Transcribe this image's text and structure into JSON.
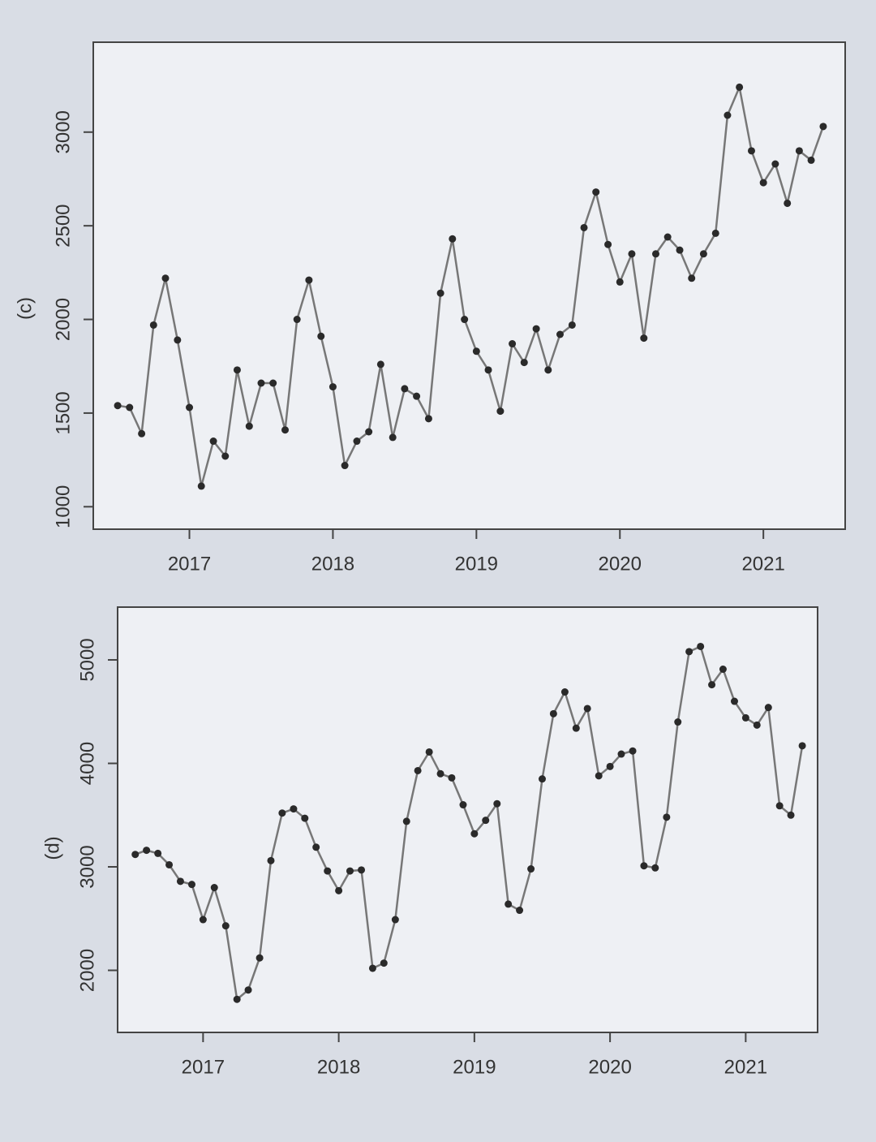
{
  "chart_data": [
    {
      "type": "line",
      "label": "(c)",
      "x": [
        2016.5,
        2016.583,
        2016.667,
        2016.75,
        2016.833,
        2016.917,
        2017,
        2017.083,
        2017.167,
        2017.25,
        2017.333,
        2017.417,
        2017.5,
        2017.583,
        2017.667,
        2017.75,
        2017.833,
        2017.917,
        2018,
        2018.083,
        2018.167,
        2018.25,
        2018.333,
        2018.417,
        2018.5,
        2018.583,
        2018.667,
        2018.75,
        2018.833,
        2018.917,
        2019,
        2019.083,
        2019.167,
        2019.25,
        2019.333,
        2019.417,
        2019.5,
        2019.583,
        2019.667,
        2019.75,
        2019.833,
        2019.917,
        2020,
        2020.083,
        2020.167,
        2020.25,
        2020.333,
        2020.417,
        2020.5,
        2020.583,
        2020.667,
        2020.75,
        2020.833,
        2020.917,
        2021,
        2021.083,
        2021.167,
        2021.25,
        2021.333,
        2021.417
      ],
      "series": [
        {
          "color": "#777777",
          "values": [
            1540,
            1530,
            1390,
            1970,
            2220,
            1890,
            1530,
            1110,
            1350,
            1270,
            1730,
            1430,
            1660,
            1660,
            1410,
            2000,
            2210,
            1910,
            1640,
            1220,
            1350,
            1400,
            1760,
            1370,
            1630,
            1590,
            1470,
            2140,
            2430,
            2000,
            1830,
            1730,
            1510,
            1870,
            1770,
            1950,
            1730,
            1920,
            1970,
            2490,
            2680,
            2400,
            2200,
            2350,
            1900,
            2350,
            2440,
            2370,
            2220,
            2350,
            2460,
            3090,
            3240,
            2900,
            2730,
            2830,
            2620,
            2900,
            2850,
            3030
          ]
        }
      ],
      "xlim": [
        2016.33,
        2021.57
      ],
      "xticks": [
        2017,
        2018,
        2019,
        2020,
        2021
      ],
      "ylim": [
        880,
        3480
      ],
      "yticks": [
        1000,
        1500,
        2000,
        2500,
        3000
      ]
    },
    {
      "type": "line",
      "label": "(d)",
      "x": [
        2016.5,
        2016.583,
        2016.667,
        2016.75,
        2016.833,
        2016.917,
        2017,
        2017.083,
        2017.167,
        2017.25,
        2017.333,
        2017.417,
        2017.5,
        2017.583,
        2017.667,
        2017.75,
        2017.833,
        2017.917,
        2018,
        2018.083,
        2018.167,
        2018.25,
        2018.333,
        2018.417,
        2018.5,
        2018.583,
        2018.667,
        2018.75,
        2018.833,
        2018.917,
        2019,
        2019.083,
        2019.167,
        2019.25,
        2019.333,
        2019.417,
        2019.5,
        2019.583,
        2019.667,
        2019.75,
        2019.833,
        2019.917,
        2020,
        2020.083,
        2020.167,
        2020.25,
        2020.333,
        2020.417,
        2020.5,
        2020.583,
        2020.667,
        2020.75,
        2020.833,
        2020.917,
        2021,
        2021.083,
        2021.167,
        2021.25,
        2021.333,
        2021.417
      ],
      "series": [
        {
          "color": "#555555",
          "values": [
            3120,
            3160,
            3130,
            3020,
            2860,
            2830,
            2490,
            2800,
            2430,
            1720,
            1810,
            2120,
            3060,
            3520,
            3560,
            3470,
            3190,
            2960,
            2770,
            2960,
            2970,
            2020,
            2070,
            2490,
            3440,
            3930,
            4110,
            3900,
            3860,
            3600,
            3320,
            3450,
            3610,
            2640,
            2580,
            2980,
            3850,
            4480,
            4690,
            4340,
            4530,
            3880,
            3970,
            4090,
            4120,
            3010,
            2990,
            3480,
            4400,
            5080,
            5130,
            4760,
            4910,
            4600,
            4440,
            4370,
            4540,
            3590,
            3500,
            4170
          ]
        }
      ],
      "xlim": [
        2016.37,
        2021.53
      ],
      "xticks": [
        2017,
        2018,
        2019,
        2020,
        2021
      ],
      "ylim": [
        1400,
        5510
      ],
      "yticks": [
        2000,
        3000,
        4000,
        5000
      ]
    }
  ]
}
